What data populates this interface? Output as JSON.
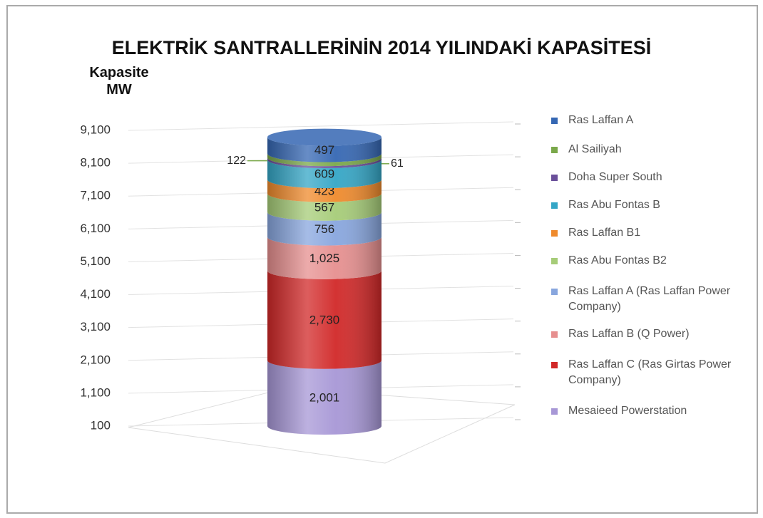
{
  "chart_data": {
    "type": "stacked-cylinder",
    "title": "ELEKTRİK SANTRALLERİNİN 2014  YILINDAKİ KAPASİTESİ",
    "y_label": "Kapasite MW",
    "ylim": [
      100,
      9100
    ],
    "yticks": [
      100,
      {
        "value": 1100,
        "label": "1,100"
      },
      {
        "value": 2100,
        "label": "2,100"
      },
      {
        "value": 3100,
        "label": "3,100"
      },
      {
        "value": 4100,
        "label": "4,100"
      },
      {
        "value": 5100,
        "label": "5,100"
      },
      {
        "value": 6100,
        "label": "6,100"
      },
      {
        "value": 7100,
        "label": "7,100"
      },
      {
        "value": 8100,
        "label": "8,100"
      },
      {
        "value": 9100,
        "label": "9,100"
      }
    ],
    "series": [
      {
        "name": "Ras Laffan A",
        "color": "#3567b3",
        "values": [
          497
        ]
      },
      {
        "name": "Al Sailiyah",
        "color": "#7aa84a",
        "values": [
          122
        ]
      },
      {
        "name": "Doha Super South",
        "color": "#6a4f9a",
        "values": [
          61
        ]
      },
      {
        "name": "Ras Abu Fontas B",
        "color": "#34a6c6",
        "values": [
          609
        ]
      },
      {
        "name": "Ras Laffan B1",
        "color": "#ef8a2c",
        "values": [
          423
        ]
      },
      {
        "name": "Ras Abu Fontas B2",
        "color": "#a6cc78",
        "values": [
          567
        ]
      },
      {
        "name": "Ras Laffan A (Ras Laffan Power Company)",
        "color": "#88a6de",
        "values": [
          756
        ]
      },
      {
        "name": "Ras Laffan B (Q Power)",
        "color": "#e68f8f",
        "values": [
          1025
        ],
        "value_labels": [
          "1,025"
        ]
      },
      {
        "name": "Ras Laffan C (Ras Girtas Power Company)",
        "color": "#d12828",
        "values": [
          2730
        ],
        "value_labels": [
          "2,730"
        ]
      },
      {
        "name": "Mesaieed Powerstation",
        "color": "#a797d6",
        "values": [
          2001
        ],
        "value_labels": [
          "2,001"
        ]
      }
    ]
  }
}
